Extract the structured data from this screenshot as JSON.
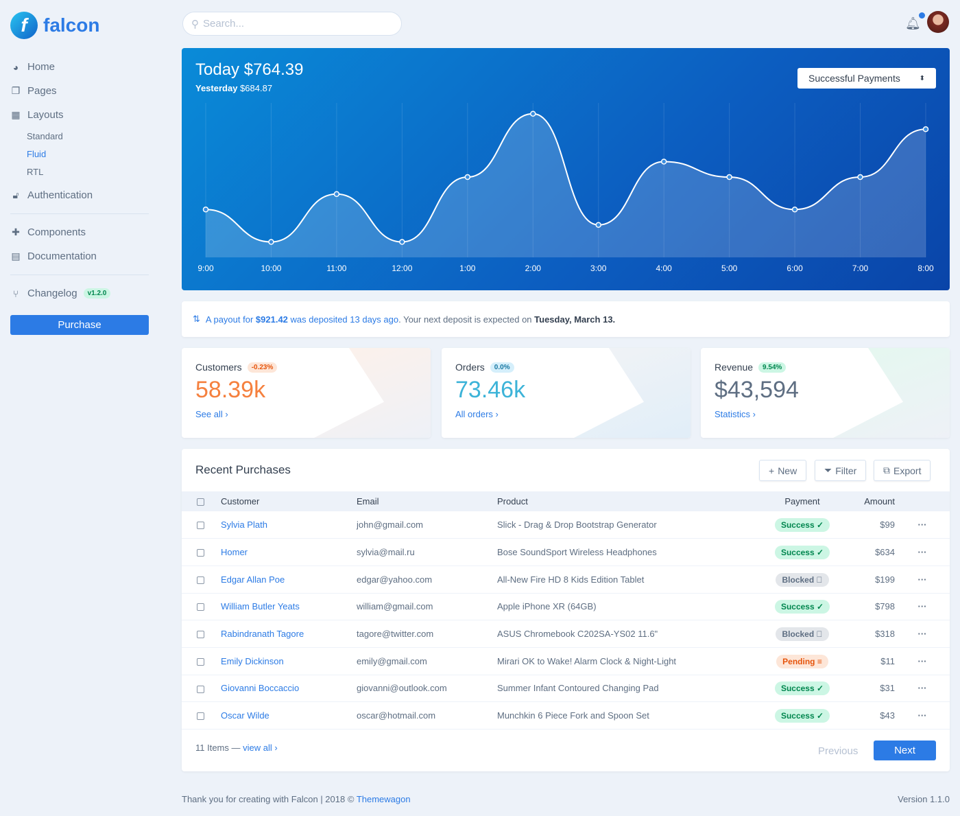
{
  "brand": {
    "name": "falcon"
  },
  "sidebar": {
    "items": [
      {
        "label": "Home",
        "icon": "pie-chart-icon"
      },
      {
        "label": "Pages",
        "icon": "copy-icon"
      },
      {
        "label": "Layouts",
        "icon": "qrcode-icon"
      }
    ],
    "sub_items": [
      {
        "label": "Standard"
      },
      {
        "label": "Fluid",
        "active": true
      },
      {
        "label": "RTL"
      }
    ],
    "auth": "Authentication",
    "components": "Components",
    "documentation": "Documentation",
    "changelog": "Changelog",
    "changelog_badge": "v1.2.0",
    "purchase": "Purchase"
  },
  "header": {
    "search_placeholder": "Search..."
  },
  "hero": {
    "today_label": "Today",
    "today_value": "$764.39",
    "yesterday_label": "Yesterday",
    "yesterday_value": "$684.87",
    "select": "Successful Payments",
    "chart_data": {
      "type": "area",
      "categories": [
        "9:00",
        "10:00",
        "11:00",
        "12:00",
        "1:00",
        "2:00",
        "3:00",
        "4:00",
        "5:00",
        "6:00",
        "7:00",
        "8:00"
      ],
      "values": [
        31,
        10,
        41,
        10,
        52,
        93,
        21,
        62,
        52,
        31,
        52,
        83
      ]
    }
  },
  "alert": {
    "pre": "A payout for",
    "amount": "$921.42",
    "mid": "was deposited 13 days ago",
    "post": ". Your next deposit is expected on",
    "date": "Tuesday, March 13."
  },
  "stats": [
    {
      "label": "Customers",
      "badge": "-0.23%",
      "value": "58.39k",
      "link": "See all ›"
    },
    {
      "label": "Orders",
      "badge": "0.0%",
      "value": "73.46k",
      "link": "All orders ›"
    },
    {
      "label": "Revenue",
      "badge": "9.54%",
      "value": "$43,594",
      "link": "Statistics ›"
    }
  ],
  "purchases": {
    "title": "Recent Purchases",
    "new": "New",
    "filter": "Filter",
    "export": "Export",
    "columns": [
      "Customer",
      "Email",
      "Product",
      "Payment",
      "Amount"
    ],
    "rows": [
      {
        "customer": "Sylvia Plath",
        "email": "john@gmail.com",
        "product": "Slick - Drag & Drop Bootstrap Generator",
        "status": "Success",
        "amount": "$99"
      },
      {
        "customer": "Homer",
        "email": "sylvia@mail.ru",
        "product": "Bose SoundSport Wireless Headphones",
        "status": "Success",
        "amount": "$634"
      },
      {
        "customer": "Edgar Allan Poe",
        "email": "edgar@yahoo.com",
        "product": "All-New Fire HD 8 Kids Edition Tablet",
        "status": "Blocked",
        "amount": "$199"
      },
      {
        "customer": "William Butler Yeats",
        "email": "william@gmail.com",
        "product": "Apple iPhone XR (64GB)",
        "status": "Success",
        "amount": "$798"
      },
      {
        "customer": "Rabindranath Tagore",
        "email": "tagore@twitter.com",
        "product": "ASUS Chromebook C202SA-YS02 11.6\"",
        "status": "Blocked",
        "amount": "$318"
      },
      {
        "customer": "Emily Dickinson",
        "email": "emily@gmail.com",
        "product": "Mirari OK to Wake! Alarm Clock & Night-Light",
        "status": "Pending",
        "amount": "$11"
      },
      {
        "customer": "Giovanni Boccaccio",
        "email": "giovanni@outlook.com",
        "product": "Summer Infant Contoured Changing Pad",
        "status": "Success",
        "amount": "$31"
      },
      {
        "customer": "Oscar Wilde",
        "email": "oscar@hotmail.com",
        "product": "Munchkin 6 Piece Fork and Spoon Set",
        "status": "Success",
        "amount": "$43"
      }
    ],
    "count": "11 Items —",
    "view_all": "view all ›",
    "previous": "Previous",
    "next": "Next"
  },
  "footer": {
    "text": "Thank you for creating with Falcon | 2018 ©",
    "link": "Themewagon",
    "version": "Version 1.1.0"
  }
}
